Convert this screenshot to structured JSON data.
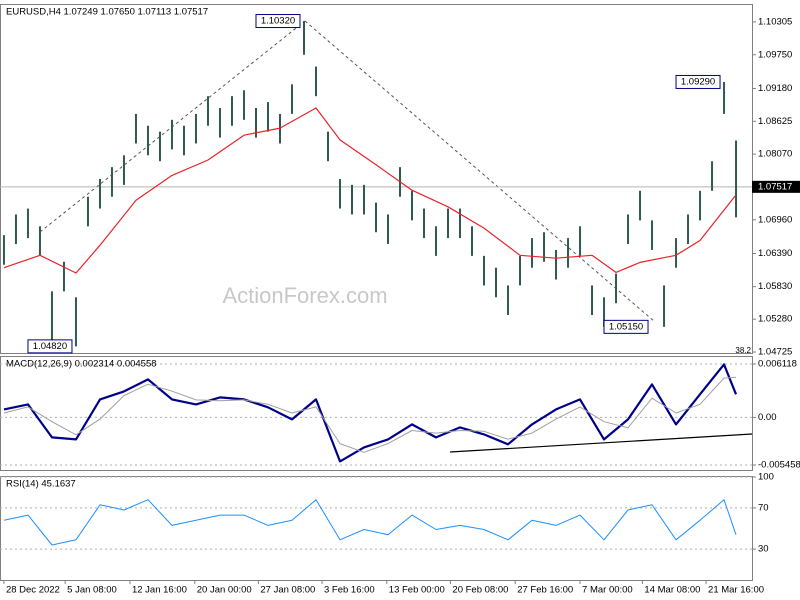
{
  "chart_data": [
    {
      "type": "range-bar",
      "title": "EURUSD,H4  1.07249 1.07650 1.07113 1.07517",
      "watermark": "ActionForex.com",
      "note": "38.2",
      "color": "#2f5a50",
      "high": [
        1.067,
        1.0705,
        1.0715,
        1.0685,
        1.0575,
        1.0625,
        1.0565,
        1.0735,
        1.0765,
        1.0785,
        1.0805,
        1.0875,
        1.0855,
        1.0845,
        1.0865,
        1.0855,
        1.0875,
        1.0905,
        1.0885,
        1.0905,
        1.0915,
        1.0885,
        1.0895,
        1.0875,
        1.0925,
        1.1032,
        1.0955,
        1.0845,
        1.0765,
        1.0755,
        1.0755,
        1.0725,
        1.0705,
        1.0785,
        1.0745,
        1.0715,
        1.0685,
        1.0715,
        1.0715,
        1.0685,
        1.0635,
        1.0615,
        1.0585,
        1.0635,
        1.0665,
        1.0675,
        1.0645,
        1.0665,
        1.0685,
        1.0585,
        1.0565,
        1.0605,
        1.0705,
        1.0745,
        1.0695,
        1.0585,
        1.0665,
        1.0705,
        1.0745,
        1.0795,
        1.0929,
        1.083
      ],
      "low": [
        1.062,
        1.0655,
        1.0665,
        1.0635,
        1.049,
        1.0575,
        1.0482,
        1.0685,
        1.0715,
        1.0735,
        1.0755,
        1.0825,
        1.0805,
        1.0795,
        1.0815,
        1.0805,
        1.0825,
        1.0855,
        1.0835,
        1.0855,
        1.0865,
        1.0835,
        1.0845,
        1.0825,
        1.0875,
        1.0975,
        1.0905,
        1.0795,
        1.0715,
        1.0705,
        1.0705,
        1.0675,
        1.0655,
        1.0735,
        1.0695,
        1.0665,
        1.0635,
        1.0665,
        1.0665,
        1.0635,
        1.0585,
        1.0565,
        1.0535,
        1.0585,
        1.0615,
        1.0625,
        1.0595,
        1.0615,
        1.0635,
        1.0535,
        1.0515,
        1.0555,
        1.0655,
        1.0695,
        1.0645,
        1.0515,
        1.0615,
        1.0655,
        1.0695,
        1.0745,
        1.0875,
        1.07
      ],
      "series": [
        {
          "color": "#e8232a",
          "x": [
            0,
            3,
            6,
            8,
            11,
            14,
            17,
            20,
            23,
            26,
            28,
            31,
            34,
            37,
            40,
            43,
            46,
            49,
            51,
            53,
            56,
            58,
            61
          ],
          "values": [
            1.0615,
            1.0636,
            1.0606,
            1.0653,
            1.0729,
            1.0771,
            1.0797,
            1.0839,
            1.0851,
            1.0885,
            1.0831,
            1.0789,
            1.0746,
            1.0718,
            1.0682,
            1.0636,
            1.0631,
            1.0636,
            1.0607,
            1.0624,
            1.0636,
            1.0661,
            1.0738
          ]
        }
      ],
      "current": {
        "value": 1.07517,
        "label": "1.07517"
      },
      "annotations": [
        {
          "value": 1.1032,
          "label": "1.10320",
          "x": 25
        },
        {
          "value": 1.0929,
          "label": "1.09290",
          "x": 60
        },
        {
          "value": 1.0482,
          "label": "1.04820",
          "x": 6
        },
        {
          "value": 1.0515,
          "label": "1.05150",
          "x": 54
        }
      ],
      "xlim": [
        -0.33,
        62.33
      ],
      "ylim": [
        1.04708,
        1.10591
      ],
      "yticks": [
        {
          "value": 1.10305,
          "label": "1.10305"
        },
        {
          "value": 1.0975,
          "label": "1.09750"
        },
        {
          "value": 1.0918,
          "label": "1.09180"
        },
        {
          "value": 1.08625,
          "label": "1.08625"
        },
        {
          "value": 1.0807,
          "label": "1.08070"
        },
        {
          "value": 1.0696,
          "label": "1.06960"
        },
        {
          "value": 1.0639,
          "label": "1.06390"
        },
        {
          "value": 1.0583,
          "label": "1.05830"
        },
        {
          "value": 1.0528,
          "label": "1.05280"
        },
        {
          "value": 1.04725,
          "label": "1.04725"
        }
      ]
    },
    {
      "type": "line",
      "title": "MACD(12,26,9) 0.002314 0.004558",
      "series": [
        {
          "color": "#00008b",
          "width": 2.2,
          "x": [
            0,
            2,
            4,
            6,
            8,
            10,
            12,
            14,
            16,
            18,
            20,
            22,
            24,
            26,
            28,
            30,
            32,
            34,
            36,
            38,
            40,
            42,
            44,
            46,
            48,
            50,
            52,
            54,
            56,
            58,
            60,
            61
          ],
          "values": [
            0.00092,
            0.00149,
            -0.00229,
            -0.00252,
            0.00206,
            0.00298,
            0.00435,
            0.00206,
            0.00149,
            0.00229,
            0.00206,
            0.00115,
            -0.00023,
            0.00206,
            -0.00504,
            -0.00344,
            -0.00252,
            -0.0008,
            -0.00229,
            -0.00115,
            -0.00195,
            -0.00309,
            -0.0008,
            0.00092,
            0.00206,
            -0.00252,
            -0.00023,
            0.00378,
            -0.0008,
            0.00264,
            0.00607,
            0.00264
          ]
        },
        {
          "color": "#a0a0a0",
          "width": 1,
          "x": [
            0,
            2,
            4,
            6,
            8,
            10,
            12,
            14,
            16,
            18,
            20,
            22,
            24,
            26,
            28,
            30,
            32,
            34,
            36,
            38,
            40,
            42,
            44,
            46,
            48,
            50,
            52,
            54,
            56,
            58,
            60,
            61
          ],
          "values": [
            0.0005,
            0.0012,
            -0.0005,
            -0.002,
            -0.0002,
            0.0025,
            0.0038,
            0.003,
            0.002,
            0.0019,
            0.002,
            0.0015,
            0.0005,
            0.0012,
            -0.003,
            -0.004,
            -0.003,
            -0.0015,
            -0.0018,
            -0.0015,
            -0.0016,
            -0.0025,
            -0.0018,
            -0.0002,
            0.0012,
            -0.0005,
            -0.0012,
            0.0022,
            0.0005,
            0.0015,
            0.0045,
            0.0046
          ]
        }
      ],
      "xlim": [
        -0.33,
        62.33
      ],
      "ylim": [
        -0.006031,
        0.00692
      ],
      "yticks": [
        0.006118,
        {
          "value": 0,
          "label": "0.00"
        },
        -0.005458
      ]
    },
    {
      "type": "line",
      "title": "RSI(14) 45.1637",
      "series": [
        {
          "color": "#1e90ff",
          "width": 1,
          "x": [
            0,
            2,
            4,
            6,
            8,
            10,
            12,
            14,
            16,
            18,
            20,
            22,
            24,
            26,
            28,
            30,
            32,
            34,
            36,
            38,
            40,
            42,
            44,
            46,
            48,
            50,
            52,
            54,
            56,
            58,
            60,
            61
          ],
          "values": [
            58,
            63,
            34,
            39,
            73,
            68,
            78,
            53,
            58,
            63,
            63,
            53,
            58,
            78,
            39,
            49,
            44,
            63,
            49,
            53,
            49,
            39,
            58,
            53,
            63,
            39,
            68,
            73,
            39,
            58,
            78,
            44
          ]
        }
      ],
      "xlim": [
        -0.33,
        62.33
      ],
      "ylim": [
        0,
        100
      ],
      "yticks": [
        30,
        70,
        100
      ],
      "xticks": [
        {
          "value": 0,
          "label": "28 Dec 2022"
        },
        {
          "value": 5.1,
          "label": "5 Jan 08:00"
        },
        {
          "value": 10.5,
          "label": "12 Jan 16:00"
        },
        {
          "value": 15.9,
          "label": "20 Jan 00:00"
        },
        {
          "value": 21.2,
          "label": "27 Jan 08:00"
        },
        {
          "value": 26.5,
          "label": "3 Feb 16:00"
        },
        {
          "value": 31.9,
          "label": "13 Feb 00:00"
        },
        {
          "value": 37.2,
          "label": "20 Feb 08:00"
        },
        {
          "value": 42.6,
          "label": "27 Feb 16:00"
        },
        {
          "value": 48,
          "label": "7 Mar 00:00"
        },
        {
          "value": 53.2,
          "label": "14 Mar 08:00"
        },
        {
          "value": 58.5,
          "label": "21 Mar 16:00"
        }
      ]
    }
  ]
}
